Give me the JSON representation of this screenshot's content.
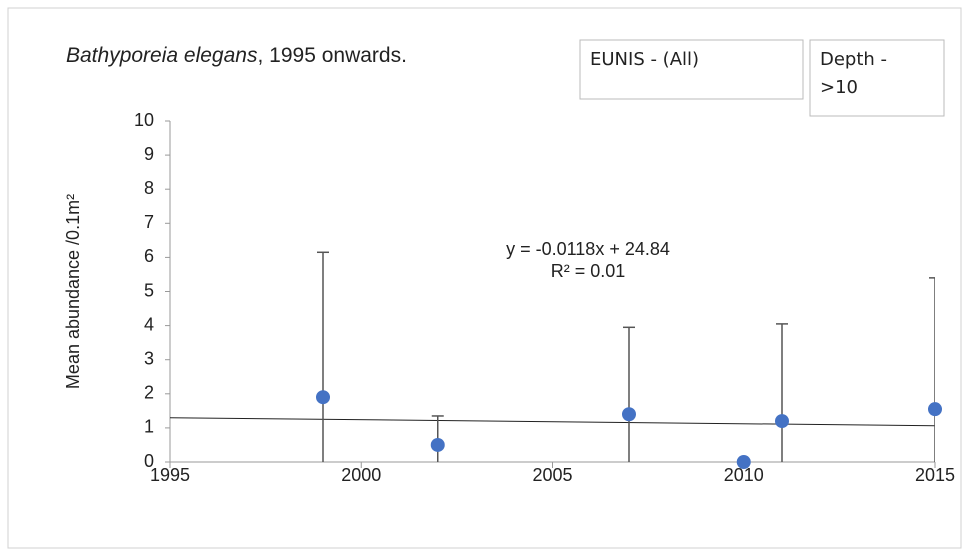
{
  "chart_data": {
    "type": "scatter",
    "title": {
      "species": "Bathyporeia elegans",
      "rest": ", 1995 onwards."
    },
    "filters": [
      {
        "lines": [
          "EUNIS - (All)"
        ]
      },
      {
        "lines": [
          "Depth -",
          ">10"
        ]
      }
    ],
    "ylabel": "Mean abundance /0.1m²",
    "x": [
      1999,
      2002,
      2007,
      2010,
      2011,
      2015
    ],
    "values": [
      1.9,
      0.5,
      1.4,
      0,
      1.2,
      1.55
    ],
    "errors": [
      4.25,
      0.85,
      2.55,
      0,
      2.85,
      3.85
    ],
    "color": "#4472c4",
    "trendline": {
      "slope": -0.0118,
      "intercept": 24.84,
      "equation": "y = -0.0118x + 24.84",
      "r2": "R² = 0.01"
    },
    "xlim": [
      1995,
      2015
    ],
    "xticks": [
      1995,
      2000,
      2005,
      2010,
      2015
    ],
    "ylim": [
      0,
      10
    ],
    "yticks": [
      0,
      1,
      2,
      3,
      4,
      5,
      6,
      7,
      8,
      9,
      10
    ]
  }
}
